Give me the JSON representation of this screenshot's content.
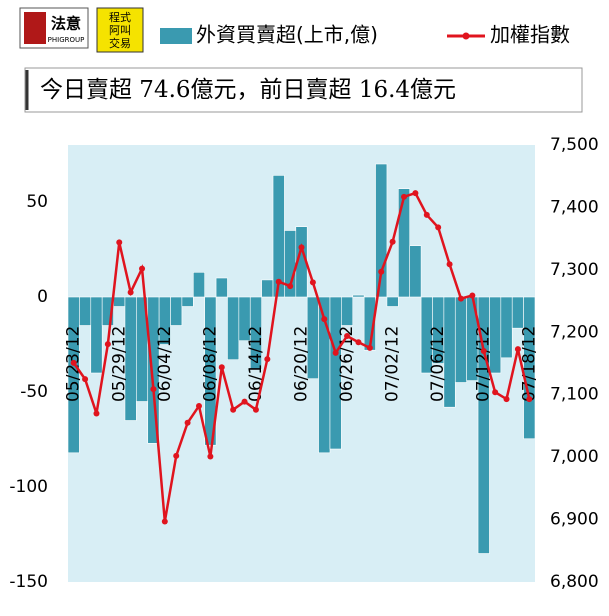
{
  "logos": [
    "法意",
    "PHIGROUP",
    "程式",
    "阿叫",
    "交易"
  ],
  "chart_data": {
    "type": "bar-line",
    "subtitle": "今日賣超 74.6億元，前日賣超 16.4億元",
    "categories": [
      "05/23/12",
      null,
      null,
      null,
      "05/29/12",
      null,
      null,
      null,
      "06/04/12",
      null,
      null,
      null,
      "06/08/12",
      null,
      null,
      null,
      "06/14/12",
      null,
      null,
      null,
      "06/20/12",
      null,
      null,
      null,
      "06/26/12",
      null,
      null,
      null,
      "07/02/12",
      null,
      null,
      null,
      "07/06/12",
      null,
      null,
      null,
      "07/12/12",
      null,
      null,
      null,
      "07/18/12"
    ],
    "series": [
      {
        "name": "外資買賣超(上市,億)",
        "color": "#3a9ab0",
        "values": [
          -82,
          -15,
          -40,
          -15,
          -5,
          -65,
          -55,
          -77,
          -25,
          -15,
          -5,
          13,
          -78,
          10,
          -33,
          -23,
          -38,
          9,
          64,
          35,
          37,
          -43,
          -82,
          -80,
          -15,
          1,
          -28,
          70,
          -5,
          57,
          27,
          -40,
          -35,
          -58,
          -45,
          -44,
          -135,
          -40,
          -32,
          -16.4,
          -74.6
        ]
      },
      {
        "name": "加權指數",
        "color": "#e0141e",
        "axis": "y2",
        "values": [
          7151,
          7125,
          7070,
          7181,
          7344,
          7264,
          7302,
          7109,
          6897,
          7002,
          7055,
          7082,
          7001,
          7144,
          7076,
          7089,
          7076,
          7157,
          7281,
          7274,
          7336,
          7280,
          7221,
          7167,
          7194,
          7184,
          7175,
          7297,
          7345,
          7417,
          7423,
          7388,
          7368,
          7309,
          7254,
          7259,
          7170,
          7104,
          7093,
          7173,
          7093
        ]
      }
    ],
    "ylim": [
      -150,
      80
    ],
    "yticks": [
      -150,
      -100,
      -50,
      0,
      50
    ],
    "y2lim": [
      6800,
      7500
    ],
    "y2ticks": [
      {
        "value": 6800,
        "label": "6,800"
      },
      {
        "value": 6900,
        "label": "6,900"
      },
      {
        "value": 7000,
        "label": "7,000"
      },
      {
        "value": 7100,
        "label": "7,100"
      },
      {
        "value": 7200,
        "label": "7,200"
      },
      {
        "value": 7300,
        "label": "7,300"
      },
      {
        "value": 7400,
        "label": "7,400"
      },
      {
        "value": 7500,
        "label": "7,500"
      }
    ]
  }
}
